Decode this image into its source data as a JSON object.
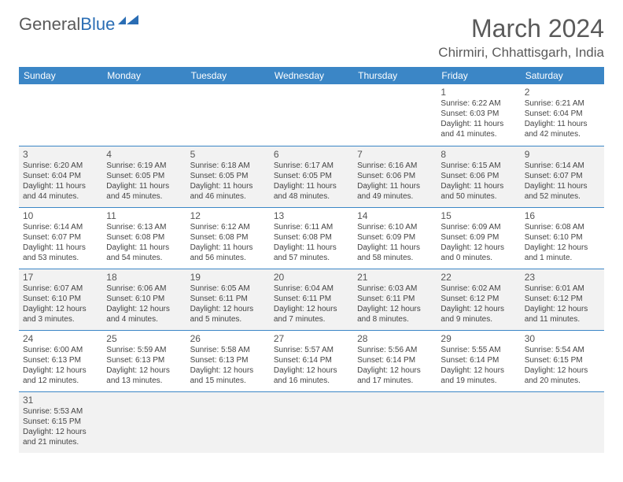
{
  "logo": {
    "text1": "General",
    "text2": "Blue"
  },
  "title": "March 2024",
  "location": "Chirmiri, Chhattisgarh, India",
  "colors": {
    "header_bg": "#3b86c6",
    "header_text": "#ffffff",
    "body_text": "#444444",
    "alt_row_bg": "#f2f2f2",
    "border": "#3b86c6",
    "logo_gray": "#5a5a5a",
    "logo_blue": "#2a6db4"
  },
  "dayHeaders": [
    "Sunday",
    "Monday",
    "Tuesday",
    "Wednesday",
    "Thursday",
    "Friday",
    "Saturday"
  ],
  "weeks": [
    [
      null,
      null,
      null,
      null,
      null,
      {
        "n": 1,
        "sr": "6:22 AM",
        "ss": "6:03 PM",
        "dl": "11 hours and 41 minutes."
      },
      {
        "n": 2,
        "sr": "6:21 AM",
        "ss": "6:04 PM",
        "dl": "11 hours and 42 minutes."
      }
    ],
    [
      {
        "n": 3,
        "sr": "6:20 AM",
        "ss": "6:04 PM",
        "dl": "11 hours and 44 minutes."
      },
      {
        "n": 4,
        "sr": "6:19 AM",
        "ss": "6:05 PM",
        "dl": "11 hours and 45 minutes."
      },
      {
        "n": 5,
        "sr": "6:18 AM",
        "ss": "6:05 PM",
        "dl": "11 hours and 46 minutes."
      },
      {
        "n": 6,
        "sr": "6:17 AM",
        "ss": "6:05 PM",
        "dl": "11 hours and 48 minutes."
      },
      {
        "n": 7,
        "sr": "6:16 AM",
        "ss": "6:06 PM",
        "dl": "11 hours and 49 minutes."
      },
      {
        "n": 8,
        "sr": "6:15 AM",
        "ss": "6:06 PM",
        "dl": "11 hours and 50 minutes."
      },
      {
        "n": 9,
        "sr": "6:14 AM",
        "ss": "6:07 PM",
        "dl": "11 hours and 52 minutes."
      }
    ],
    [
      {
        "n": 10,
        "sr": "6:14 AM",
        "ss": "6:07 PM",
        "dl": "11 hours and 53 minutes."
      },
      {
        "n": 11,
        "sr": "6:13 AM",
        "ss": "6:08 PM",
        "dl": "11 hours and 54 minutes."
      },
      {
        "n": 12,
        "sr": "6:12 AM",
        "ss": "6:08 PM",
        "dl": "11 hours and 56 minutes."
      },
      {
        "n": 13,
        "sr": "6:11 AM",
        "ss": "6:08 PM",
        "dl": "11 hours and 57 minutes."
      },
      {
        "n": 14,
        "sr": "6:10 AM",
        "ss": "6:09 PM",
        "dl": "11 hours and 58 minutes."
      },
      {
        "n": 15,
        "sr": "6:09 AM",
        "ss": "6:09 PM",
        "dl": "12 hours and 0 minutes."
      },
      {
        "n": 16,
        "sr": "6:08 AM",
        "ss": "6:10 PM",
        "dl": "12 hours and 1 minute."
      }
    ],
    [
      {
        "n": 17,
        "sr": "6:07 AM",
        "ss": "6:10 PM",
        "dl": "12 hours and 3 minutes."
      },
      {
        "n": 18,
        "sr": "6:06 AM",
        "ss": "6:10 PM",
        "dl": "12 hours and 4 minutes."
      },
      {
        "n": 19,
        "sr": "6:05 AM",
        "ss": "6:11 PM",
        "dl": "12 hours and 5 minutes."
      },
      {
        "n": 20,
        "sr": "6:04 AM",
        "ss": "6:11 PM",
        "dl": "12 hours and 7 minutes."
      },
      {
        "n": 21,
        "sr": "6:03 AM",
        "ss": "6:11 PM",
        "dl": "12 hours and 8 minutes."
      },
      {
        "n": 22,
        "sr": "6:02 AM",
        "ss": "6:12 PM",
        "dl": "12 hours and 9 minutes."
      },
      {
        "n": 23,
        "sr": "6:01 AM",
        "ss": "6:12 PM",
        "dl": "12 hours and 11 minutes."
      }
    ],
    [
      {
        "n": 24,
        "sr": "6:00 AM",
        "ss": "6:13 PM",
        "dl": "12 hours and 12 minutes."
      },
      {
        "n": 25,
        "sr": "5:59 AM",
        "ss": "6:13 PM",
        "dl": "12 hours and 13 minutes."
      },
      {
        "n": 26,
        "sr": "5:58 AM",
        "ss": "6:13 PM",
        "dl": "12 hours and 15 minutes."
      },
      {
        "n": 27,
        "sr": "5:57 AM",
        "ss": "6:14 PM",
        "dl": "12 hours and 16 minutes."
      },
      {
        "n": 28,
        "sr": "5:56 AM",
        "ss": "6:14 PM",
        "dl": "12 hours and 17 minutes."
      },
      {
        "n": 29,
        "sr": "5:55 AM",
        "ss": "6:14 PM",
        "dl": "12 hours and 19 minutes."
      },
      {
        "n": 30,
        "sr": "5:54 AM",
        "ss": "6:15 PM",
        "dl": "12 hours and 20 minutes."
      }
    ],
    [
      {
        "n": 31,
        "sr": "5:53 AM",
        "ss": "6:15 PM",
        "dl": "12 hours and 21 minutes."
      },
      null,
      null,
      null,
      null,
      null,
      null
    ]
  ],
  "labels": {
    "sunrise": "Sunrise:",
    "sunset": "Sunset:",
    "daylight": "Daylight:"
  }
}
